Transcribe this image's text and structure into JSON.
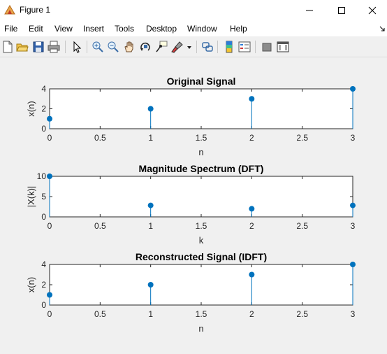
{
  "window": {
    "title": "Figure 1"
  },
  "menu": [
    "File",
    "Edit",
    "View",
    "Insert",
    "Tools",
    "Desktop",
    "Window",
    "Help"
  ],
  "toolbar_icons": [
    "new-figure-icon",
    "open-file-icon",
    "save-icon",
    "print-icon",
    "pointer-icon",
    "zoom-in-icon",
    "zoom-out-icon",
    "pan-icon",
    "rotate-3d-icon",
    "data-cursor-icon",
    "brush-icon",
    "brush-dropdown-icon",
    "link-plot-icon",
    "colorbar-icon",
    "legend-icon",
    "hide-plot-tools-icon",
    "show-plot-tools-icon"
  ],
  "colors": {
    "stem": "#0072bd",
    "axes_bg": "#ffffff",
    "figure_bg": "#f0f0f0"
  },
  "chart_data": [
    {
      "type": "stem",
      "title": "Original Signal",
      "xlabel": "n",
      "ylabel": "x(n)",
      "x": [
        0,
        1,
        2,
        3
      ],
      "values": [
        1,
        2,
        3,
        4
      ],
      "xlim": [
        0,
        3
      ],
      "ylim": [
        0,
        4
      ],
      "xticks": [
        "0",
        "0.5",
        "1",
        "1.5",
        "2",
        "2.5",
        "3"
      ],
      "yticks": [
        "0",
        "2",
        "4"
      ]
    },
    {
      "type": "stem",
      "title": "Magnitude Spectrum (DFT)",
      "xlabel": "k",
      "ylabel": "|X(k)|",
      "x": [
        0,
        1,
        2,
        3
      ],
      "values": [
        10,
        2.83,
        2,
        2.83
      ],
      "xlim": [
        0,
        3
      ],
      "ylim": [
        0,
        10
      ],
      "xticks": [
        "0",
        "0.5",
        "1",
        "1.5",
        "2",
        "2.5",
        "3"
      ],
      "yticks": [
        "0",
        "5",
        "10"
      ]
    },
    {
      "type": "stem",
      "title": "Reconstructed Signal (IDFT)",
      "xlabel": "n",
      "ylabel": "x(n)",
      "x": [
        0,
        1,
        2,
        3
      ],
      "values": [
        1,
        2,
        3,
        4
      ],
      "xlim": [
        0,
        3
      ],
      "ylim": [
        0,
        4
      ],
      "xticks": [
        "0",
        "0.5",
        "1",
        "1.5",
        "2",
        "2.5",
        "3"
      ],
      "yticks": [
        "0",
        "2",
        "4"
      ]
    }
  ]
}
